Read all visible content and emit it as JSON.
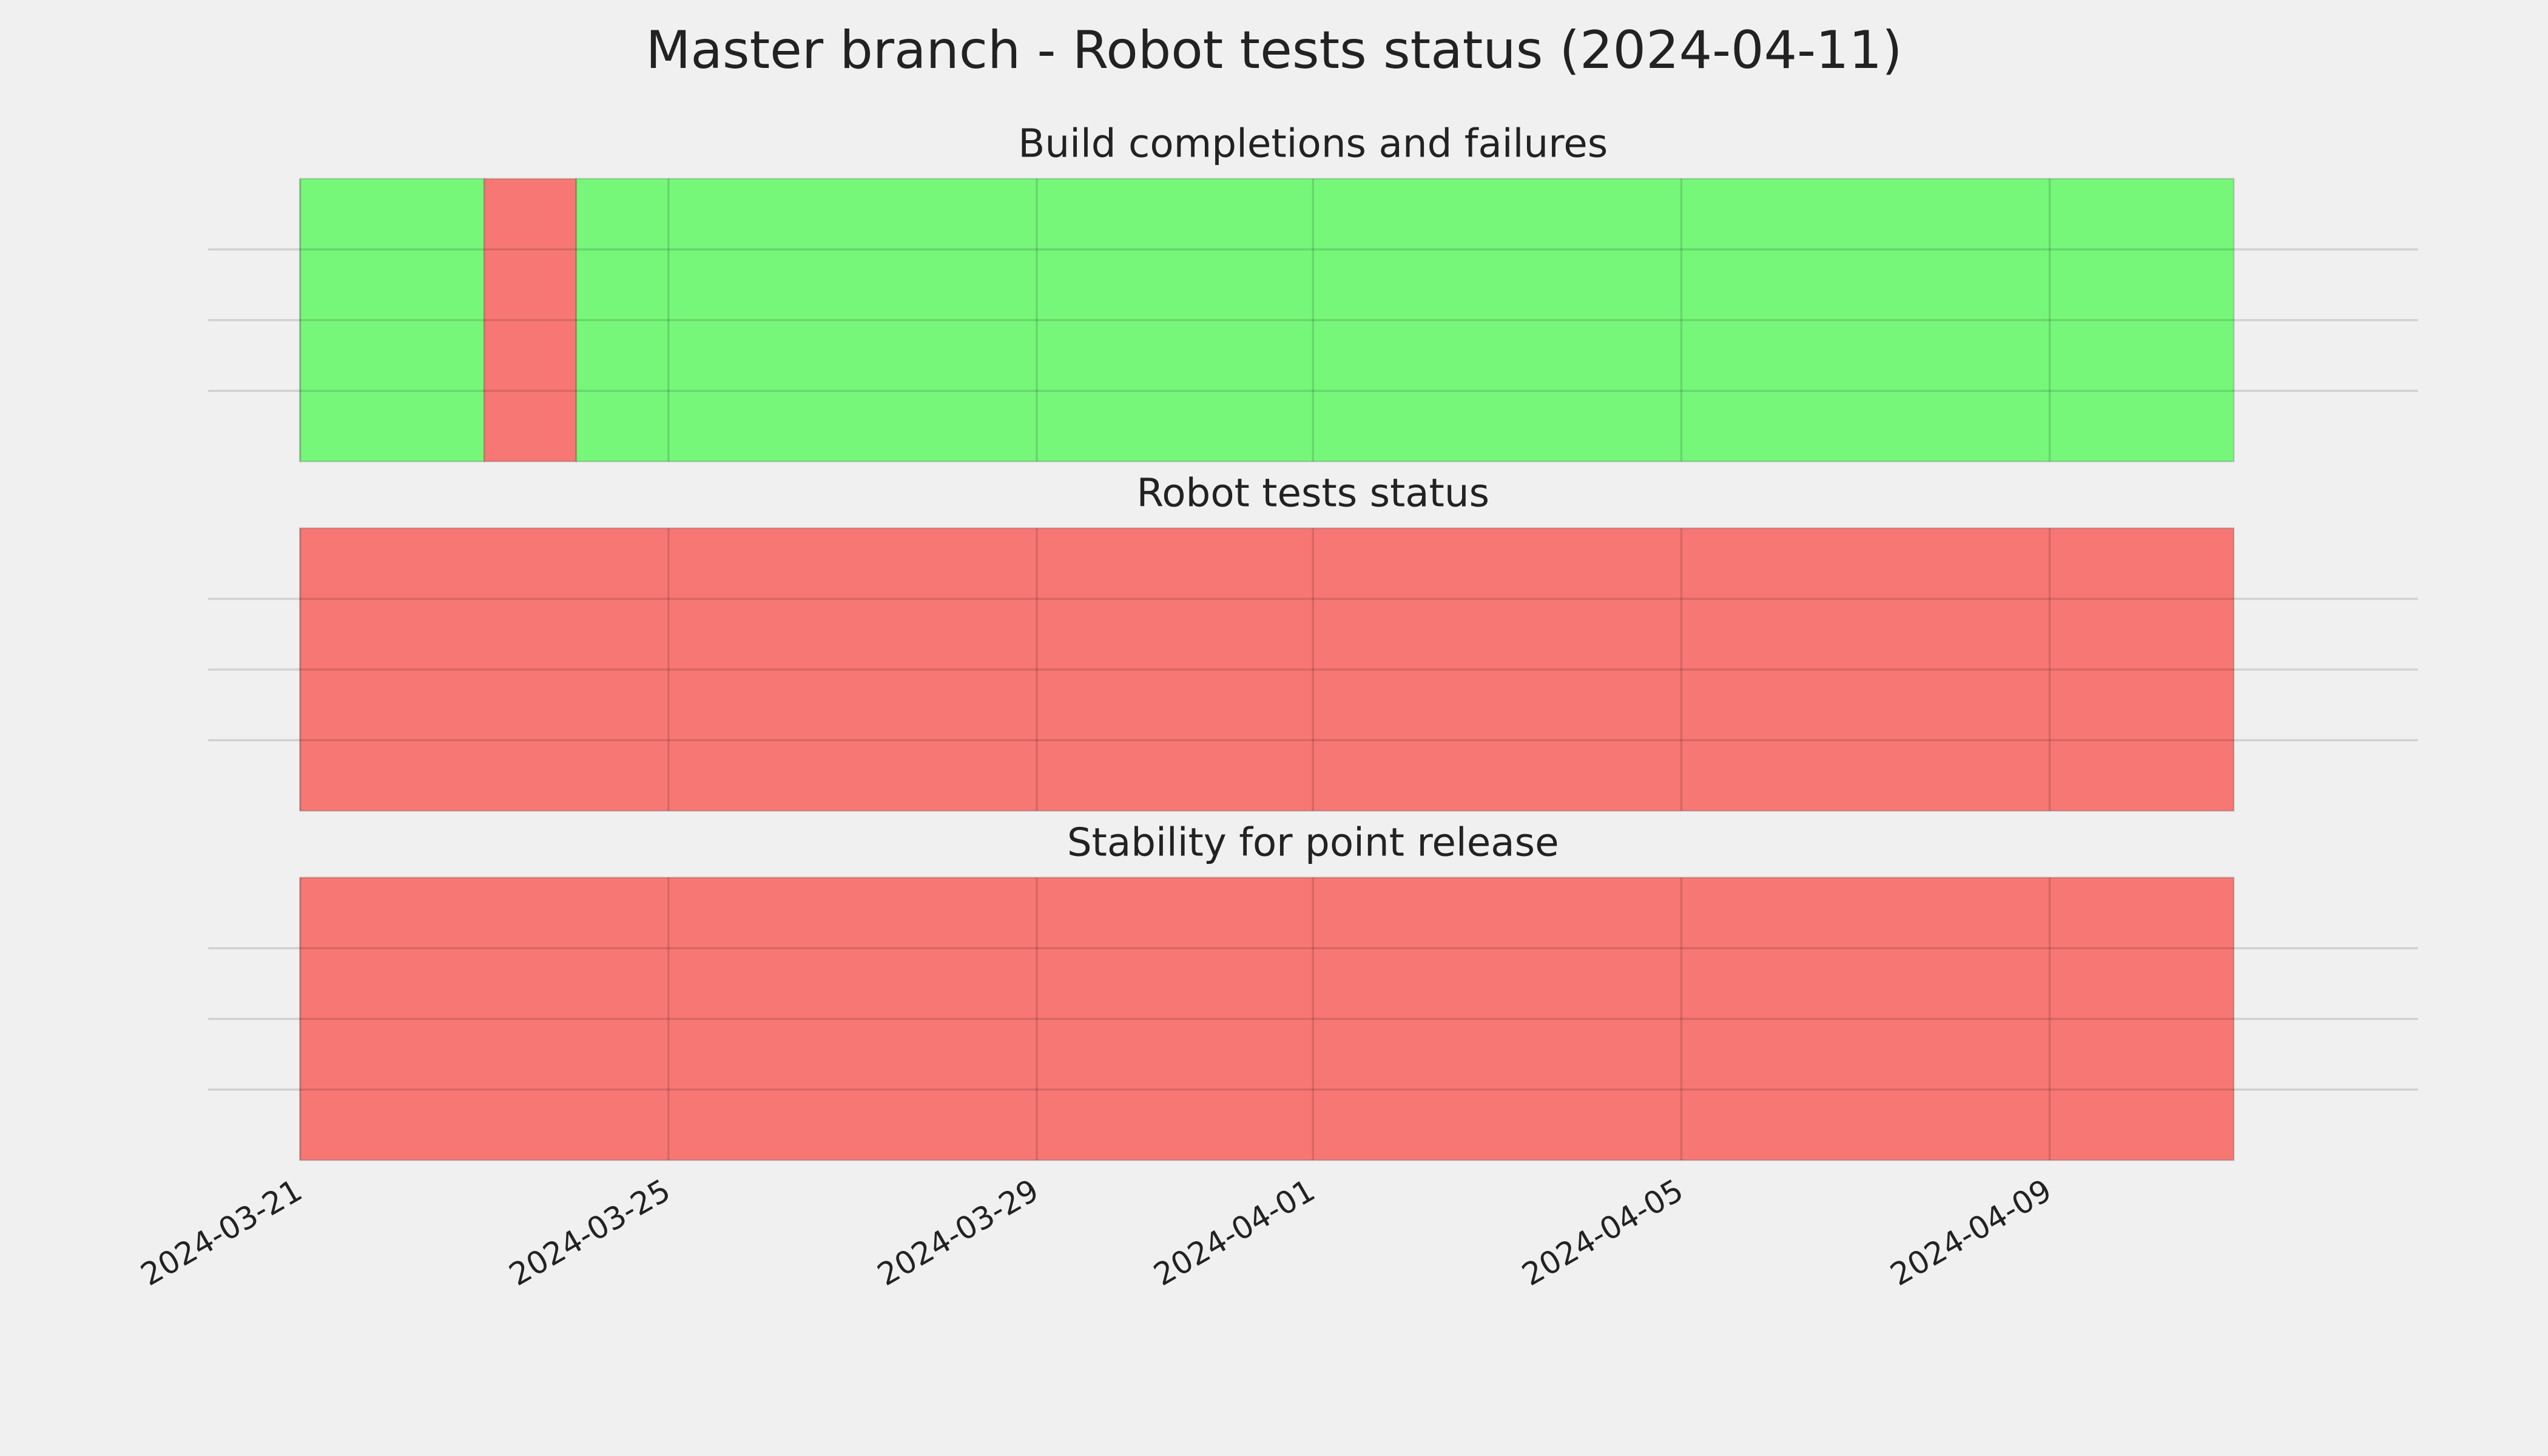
{
  "title": "Master branch - Robot tests status (2024-04-11)",
  "chart_data": [
    {
      "type": "timeline",
      "title": "Build completions and failures",
      "segments": [
        {
          "start": "2024-03-21",
          "end": "2024-03-23",
          "color": "#77f77a"
        },
        {
          "start": "2024-03-23",
          "end": "2024-03-24",
          "color": "#f77774"
        },
        {
          "start": "2024-03-24",
          "end": "2024-04-11",
          "color": "#77f77a"
        }
      ],
      "xlim": [
        "2024-03-20",
        "2024-04-13"
      ],
      "xticks": [
        "2024-03-21",
        "2024-03-25",
        "2024-03-29",
        "2024-04-01",
        "2024-04-05",
        "2024-04-09"
      ],
      "ylim": [
        0,
        1
      ],
      "yticks": [
        0.25,
        0.5,
        0.75
      ],
      "grid": true
    },
    {
      "type": "timeline",
      "title": "Robot tests status",
      "segments": [
        {
          "start": "2024-03-21",
          "end": "2024-04-11",
          "color": "#f77774"
        }
      ],
      "xlim": [
        "2024-03-20",
        "2024-04-13"
      ],
      "xticks": [
        "2024-03-21",
        "2024-03-25",
        "2024-03-29",
        "2024-04-01",
        "2024-04-05",
        "2024-04-09"
      ],
      "ylim": [
        0,
        1
      ],
      "yticks": [
        0.25,
        0.5,
        0.75
      ],
      "grid": true
    },
    {
      "type": "timeline",
      "title": "Stability for point release",
      "segments": [
        {
          "start": "2024-03-21",
          "end": "2024-04-11",
          "color": "#f77774"
        }
      ],
      "xlim": [
        "2024-03-20",
        "2024-04-13"
      ],
      "xticks": [
        "2024-03-21",
        "2024-03-25",
        "2024-03-29",
        "2024-04-01",
        "2024-04-05",
        "2024-04-09"
      ],
      "ylim": [
        0,
        1
      ],
      "yticks": [
        0.25,
        0.5,
        0.75
      ],
      "grid": true,
      "show_xtick_labels": true
    }
  ]
}
